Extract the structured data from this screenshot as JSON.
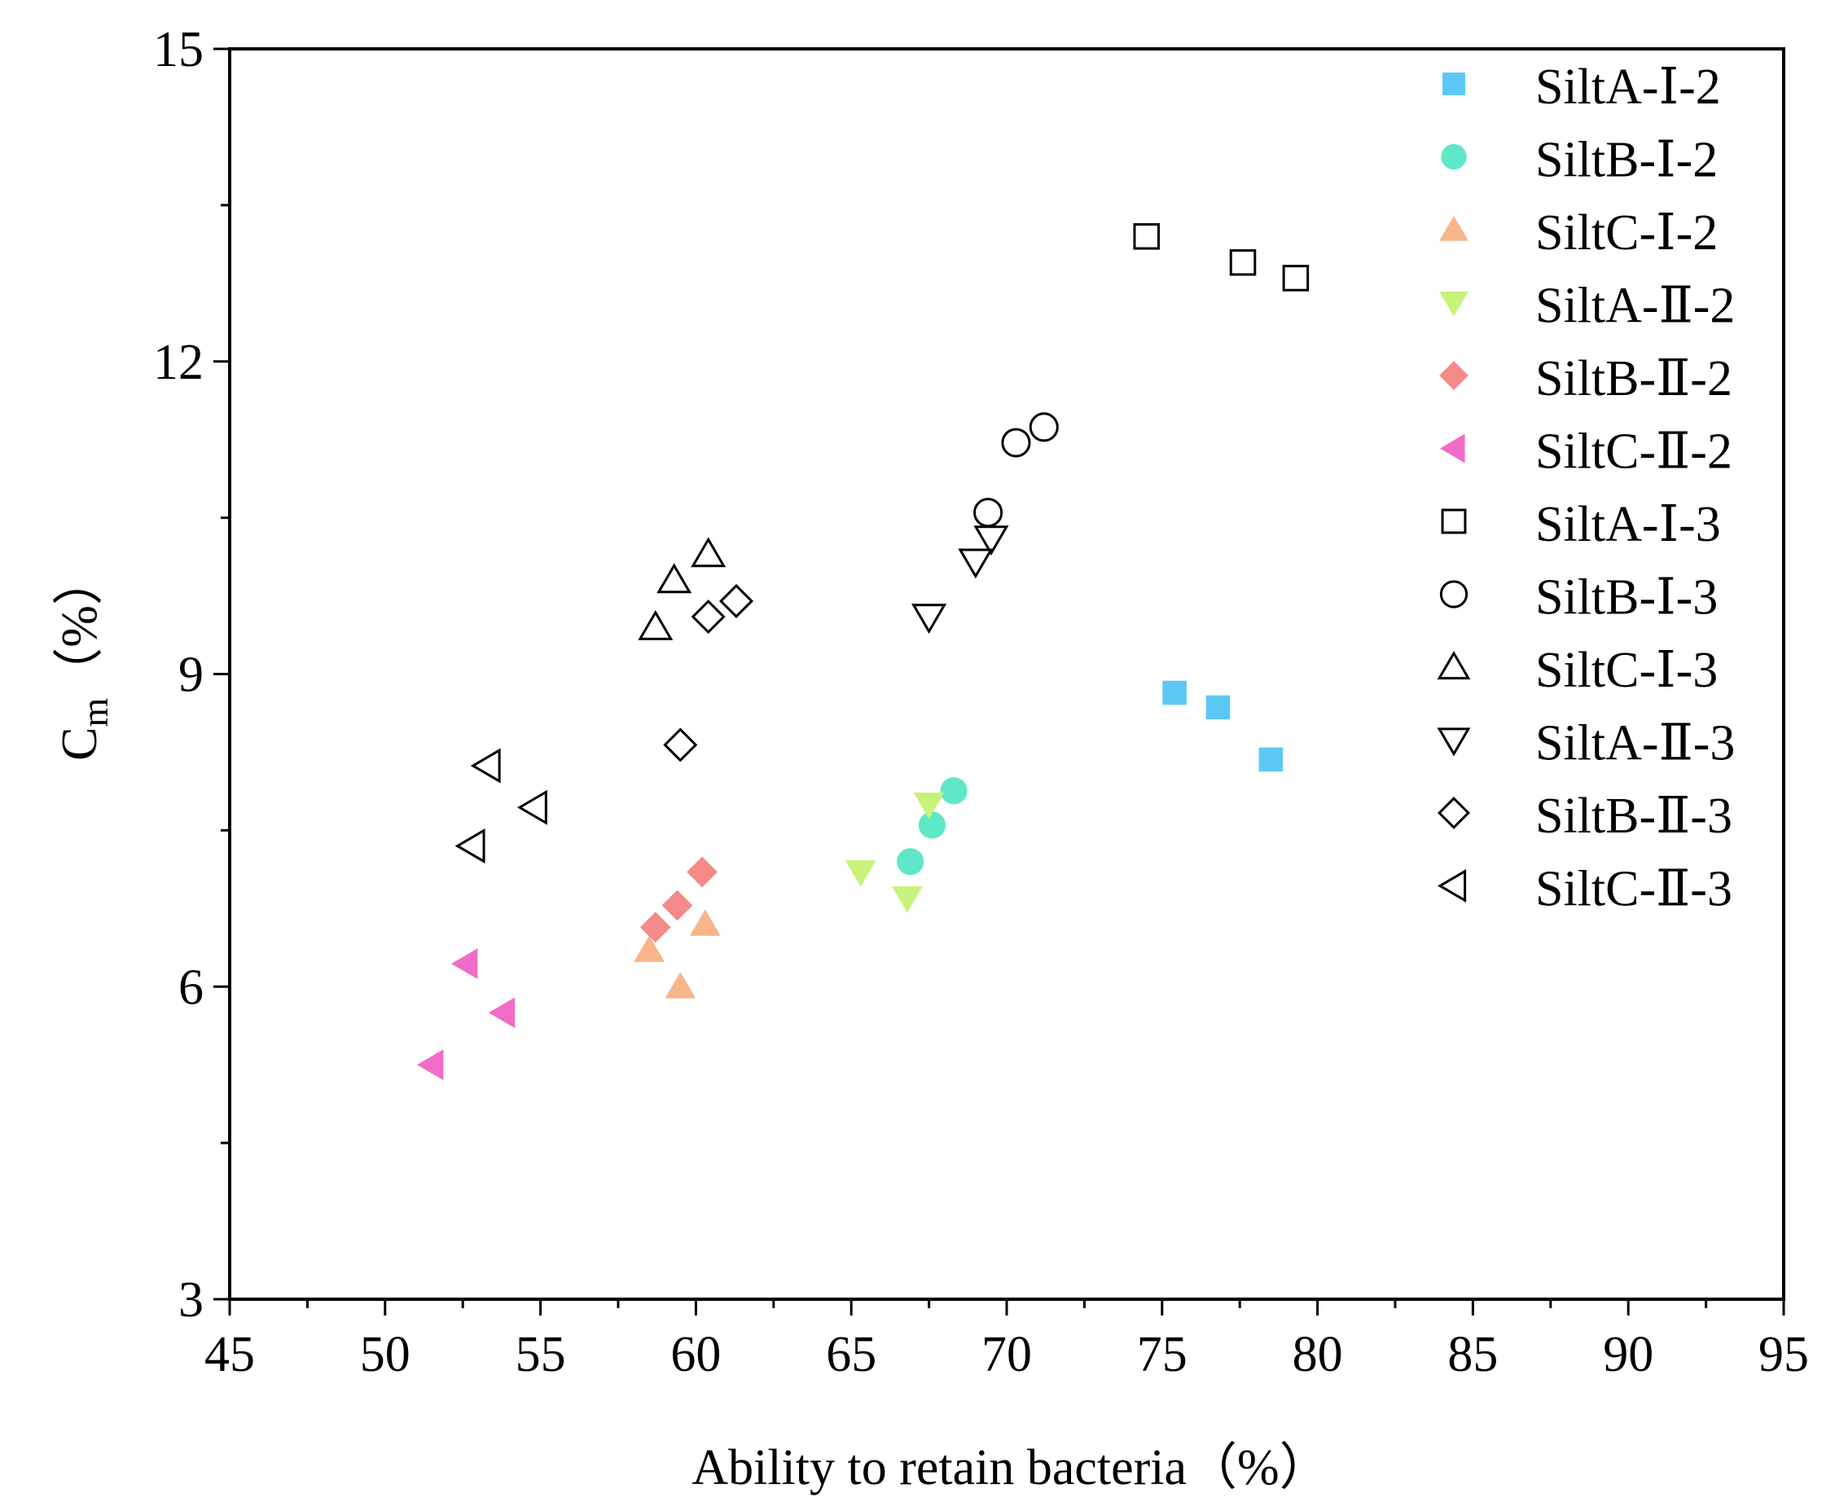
{
  "chart_data": {
    "type": "scatter",
    "title": "",
    "xlabel": "Ability to retain bacteria（%）",
    "ylabel_main": "C",
    "ylabel_sub": "m",
    "ylabel_unit": "（%）",
    "xlim": [
      45,
      95
    ],
    "ylim": [
      3,
      15
    ],
    "xticks": [
      "45",
      "50",
      "55",
      "60",
      "65",
      "70",
      "75",
      "80",
      "85",
      "90",
      "95"
    ],
    "yticks": [
      "3",
      "6",
      "9",
      "12",
      "15"
    ],
    "grid": false,
    "legend_position": "top-right",
    "series": [
      {
        "name": "SiltA-Ⅰ-2",
        "marker": "square",
        "filled": true,
        "color": "#5bc8f5",
        "points": [
          [
            75.4,
            8.82
          ],
          [
            76.8,
            8.68
          ],
          [
            78.5,
            8.18
          ]
        ]
      },
      {
        "name": "SiltB-Ⅰ-2",
        "marker": "circle",
        "filled": true,
        "color": "#5ee8c8",
        "points": [
          [
            66.9,
            7.2
          ],
          [
            67.6,
            7.55
          ],
          [
            68.3,
            7.88
          ]
        ]
      },
      {
        "name": "SiltC-Ⅰ-2",
        "marker": "triangle-up",
        "filled": true,
        "color": "#f8b48a",
        "points": [
          [
            58.5,
            6.35
          ],
          [
            59.5,
            6.0
          ],
          [
            60.3,
            6.6
          ]
        ]
      },
      {
        "name": "SiltA-Ⅱ-2",
        "marker": "triangle-down",
        "filled": true,
        "color": "#c8f27a",
        "points": [
          [
            65.3,
            7.1
          ],
          [
            66.8,
            6.85
          ],
          [
            67.5,
            7.75
          ]
        ]
      },
      {
        "name": "SiltB-Ⅱ-2",
        "marker": "diamond",
        "filled": true,
        "color": "#f58a8a",
        "points": [
          [
            58.7,
            6.57
          ],
          [
            59.4,
            6.78
          ],
          [
            60.2,
            7.1
          ]
        ]
      },
      {
        "name": "SiltC-Ⅱ-2",
        "marker": "triangle-left",
        "filled": true,
        "color": "#f06cc8",
        "points": [
          [
            51.5,
            5.25
          ],
          [
            52.6,
            6.22
          ],
          [
            53.8,
            5.75
          ]
        ]
      },
      {
        "name": "SiltA-Ⅰ-3",
        "marker": "square",
        "filled": false,
        "color": "#000000",
        "points": [
          [
            74.5,
            13.2
          ],
          [
            77.6,
            12.95
          ],
          [
            79.3,
            12.8
          ]
        ]
      },
      {
        "name": "SiltB-Ⅰ-3",
        "marker": "circle",
        "filled": false,
        "color": "#000000",
        "points": [
          [
            69.4,
            10.55
          ],
          [
            70.3,
            11.22
          ],
          [
            71.2,
            11.37
          ]
        ]
      },
      {
        "name": "SiltC-Ⅰ-3",
        "marker": "triangle-up",
        "filled": false,
        "color": "#000000",
        "points": [
          [
            58.7,
            9.45
          ],
          [
            59.3,
            9.9
          ],
          [
            60.4,
            10.15
          ]
        ]
      },
      {
        "name": "SiltA-Ⅱ-3",
        "marker": "triangle-down",
        "filled": false,
        "color": "#000000",
        "points": [
          [
            67.5,
            9.55
          ],
          [
            69.0,
            10.08
          ],
          [
            69.5,
            10.3
          ]
        ]
      },
      {
        "name": "SiltB-Ⅱ-3",
        "marker": "diamond",
        "filled": false,
        "color": "#000000",
        "points": [
          [
            59.5,
            8.32
          ],
          [
            60.4,
            9.55
          ],
          [
            61.3,
            9.7
          ]
        ]
      },
      {
        "name": "SiltC-Ⅱ-3",
        "marker": "triangle-left",
        "filled": false,
        "color": "#000000",
        "points": [
          [
            52.8,
            7.35
          ],
          [
            53.3,
            8.12
          ],
          [
            54.8,
            7.72
          ]
        ]
      }
    ]
  }
}
